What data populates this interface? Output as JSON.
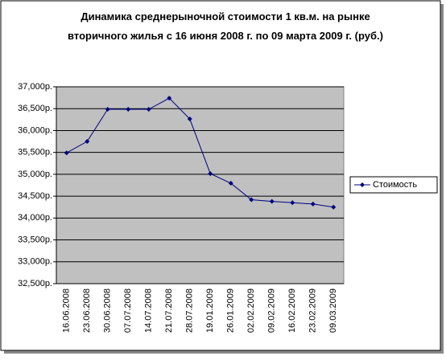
{
  "chart_data": {
    "type": "line",
    "title": "Динамика среднерыночной стоимости 1 кв.м. на рынке вторичного жилья с 16 июня 2008 г. по 09 марта 2009 г. (руб.)",
    "categories": [
      "16.06.2008",
      "23.06.2008",
      "30.06.2008",
      "07.07.2008",
      "14.07.2008",
      "21.07.2008",
      "28.07.2008",
      "19.01.2009",
      "26.01.2009",
      "02.02.2009",
      "09.02.2009",
      "16.02.2009",
      "23.02.2009",
      "09.03.2009"
    ],
    "series": [
      {
        "name": "Стоимость",
        "color": "#000080",
        "values": [
          35490,
          35750,
          36485,
          36485,
          36485,
          36740,
          36265,
          35015,
          34795,
          34420,
          34380,
          34350,
          34320,
          34250
        ]
      }
    ],
    "ylim": [
      32500,
      37000
    ],
    "yticks": [
      {
        "value": 32500,
        "label": "32,500р."
      },
      {
        "value": 33000,
        "label": "33,000р."
      },
      {
        "value": 33500,
        "label": "33,500р."
      },
      {
        "value": 34000,
        "label": "34,000р."
      },
      {
        "value": 34500,
        "label": "34,500р."
      },
      {
        "value": 35000,
        "label": "35,000р."
      },
      {
        "value": 35500,
        "label": "35,500р."
      },
      {
        "value": 36000,
        "label": "36,000р."
      },
      {
        "value": 36500,
        "label": "36,500р."
      },
      {
        "value": 37000,
        "label": "37,000р."
      }
    ],
    "grid": true,
    "legend": "right"
  }
}
